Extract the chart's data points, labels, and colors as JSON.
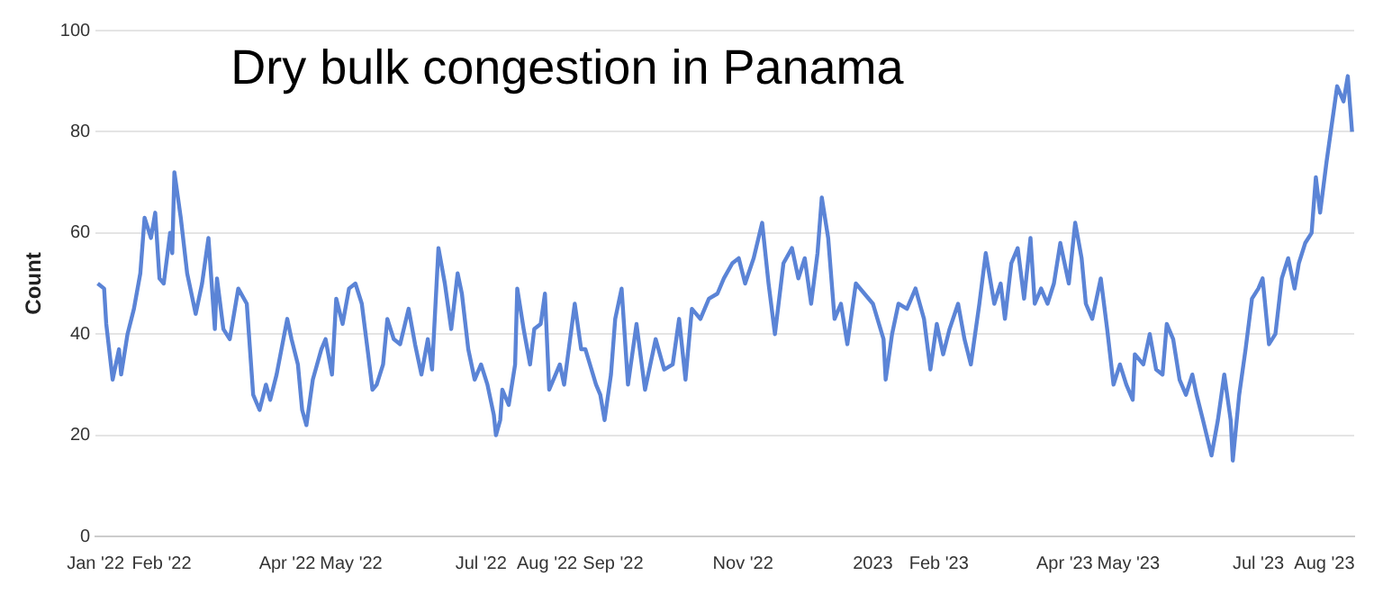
{
  "chart_data": {
    "type": "line",
    "title": "Dry bulk congestion in Panama",
    "ylabel": "Count",
    "x": [
      "2022-01-02",
      "2022-01-05",
      "2022-01-06",
      "2022-01-09",
      "2022-01-12",
      "2022-01-13",
      "2022-01-16",
      "2022-01-19",
      "2022-01-22",
      "2022-01-24",
      "2022-01-27",
      "2022-01-29",
      "2022-01-31",
      "2022-02-02",
      "2022-02-05",
      "2022-02-06",
      "2022-02-07",
      "2022-02-10",
      "2022-02-13",
      "2022-02-17",
      "2022-02-20",
      "2022-02-23",
      "2022-02-26",
      "2022-02-27",
      "2022-03-02",
      "2022-03-05",
      "2022-03-09",
      "2022-03-13",
      "2022-03-16",
      "2022-03-19",
      "2022-03-22",
      "2022-03-24",
      "2022-03-27",
      "2022-04-01",
      "2022-04-03",
      "2022-04-06",
      "2022-04-08",
      "2022-04-10",
      "2022-04-13",
      "2022-04-17",
      "2022-04-19",
      "2022-04-22",
      "2022-04-24",
      "2022-04-27",
      "2022-04-30",
      "2022-05-03",
      "2022-05-06",
      "2022-05-09",
      "2022-05-11",
      "2022-05-13",
      "2022-05-16",
      "2022-05-18",
      "2022-05-21",
      "2022-05-24",
      "2022-05-28",
      "2022-05-31",
      "2022-06-03",
      "2022-06-06",
      "2022-06-08",
      "2022-06-11",
      "2022-06-14",
      "2022-06-17",
      "2022-06-20",
      "2022-06-22",
      "2022-06-25",
      "2022-06-28",
      "2022-07-01",
      "2022-07-04",
      "2022-07-07",
      "2022-07-08",
      "2022-07-10",
      "2022-07-11",
      "2022-07-14",
      "2022-07-17",
      "2022-07-18",
      "2022-07-21",
      "2022-07-24",
      "2022-07-26",
      "2022-07-29",
      "2022-07-31",
      "2022-08-02",
      "2022-08-07",
      "2022-08-09",
      "2022-08-14",
      "2022-08-17",
      "2022-08-19",
      "2022-08-24",
      "2022-08-26",
      "2022-08-28",
      "2022-08-31",
      "2022-09-02",
      "2022-09-05",
      "2022-09-08",
      "2022-09-12",
      "2022-09-16",
      "2022-09-21",
      "2022-09-25",
      "2022-09-29",
      "2022-10-02",
      "2022-10-05",
      "2022-10-08",
      "2022-10-12",
      "2022-10-16",
      "2022-10-20",
      "2022-10-23",
      "2022-10-27",
      "2022-10-30",
      "2022-11-02",
      "2022-11-06",
      "2022-11-10",
      "2022-11-13",
      "2022-11-16",
      "2022-11-20",
      "2022-11-24",
      "2022-11-27",
      "2022-11-30",
      "2022-12-03",
      "2022-12-06",
      "2022-12-08",
      "2022-12-11",
      "2022-12-14",
      "2022-12-17",
      "2022-12-20",
      "2022-12-24",
      "2022-12-28",
      "2023-01-01",
      "2023-01-06",
      "2023-01-07",
      "2023-01-10",
      "2023-01-13",
      "2023-01-17",
      "2023-01-21",
      "2023-01-25",
      "2023-01-28",
      "2023-01-31",
      "2023-02-03",
      "2023-02-06",
      "2023-02-10",
      "2023-02-13",
      "2023-02-16",
      "2023-02-20",
      "2023-02-23",
      "2023-02-27",
      "2023-03-02",
      "2023-03-04",
      "2023-03-07",
      "2023-03-10",
      "2023-03-13",
      "2023-03-16",
      "2023-03-18",
      "2023-03-21",
      "2023-03-24",
      "2023-03-27",
      "2023-03-30",
      "2023-04-03",
      "2023-04-06",
      "2023-04-09",
      "2023-04-11",
      "2023-04-14",
      "2023-04-18",
      "2023-04-21",
      "2023-04-24",
      "2023-04-27",
      "2023-04-30",
      "2023-05-03",
      "2023-05-04",
      "2023-05-08",
      "2023-05-11",
      "2023-05-14",
      "2023-05-17",
      "2023-05-19",
      "2023-05-22",
      "2023-05-25",
      "2023-05-28",
      "2023-05-31",
      "2023-06-02",
      "2023-06-05",
      "2023-06-09",
      "2023-06-12",
      "2023-06-15",
      "2023-06-18",
      "2023-06-19",
      "2023-06-22",
      "2023-06-25",
      "2023-06-28",
      "2023-07-01",
      "2023-07-03",
      "2023-07-06",
      "2023-07-09",
      "2023-07-12",
      "2023-07-15",
      "2023-07-18",
      "2023-07-20",
      "2023-07-23",
      "2023-07-26",
      "2023-07-28",
      "2023-07-30",
      "2023-08-02",
      "2023-08-04",
      "2023-08-07",
      "2023-08-10",
      "2023-08-12",
      "2023-08-14"
    ],
    "series": [
      {
        "color": "#5b84d6",
        "values": [
          50,
          49,
          42,
          31,
          37,
          32,
          40,
          45,
          52,
          63,
          59,
          64,
          51,
          50,
          60,
          56,
          72,
          63,
          52,
          44,
          50,
          59,
          41,
          51,
          41,
          39,
          49,
          46,
          28,
          25,
          30,
          27,
          32,
          43,
          39,
          34,
          25,
          22,
          31,
          37,
          39,
          32,
          47,
          42,
          49,
          50,
          46,
          36,
          29,
          30,
          34,
          43,
          39,
          38,
          45,
          38,
          32,
          39,
          33,
          57,
          50,
          41,
          52,
          48,
          37,
          31,
          34,
          30,
          24,
          20,
          23,
          29,
          26,
          34,
          49,
          41,
          34,
          41,
          42,
          48,
          29,
          34,
          30,
          46,
          37,
          37,
          30,
          28,
          23,
          32,
          43,
          49,
          30,
          42,
          29,
          39,
          33,
          34,
          43,
          31,
          45,
          43,
          47,
          48,
          51,
          54,
          55,
          50,
          55,
          62,
          50,
          40,
          54,
          57,
          51,
          55,
          46,
          56,
          67,
          59,
          43,
          46,
          38,
          50,
          48,
          46,
          39,
          31,
          40,
          46,
          45,
          49,
          43,
          33,
          42,
          36,
          41,
          46,
          39,
          34,
          46,
          56,
          46,
          50,
          43,
          54,
          57,
          47,
          59,
          46,
          49,
          46,
          50,
          58,
          50,
          62,
          55,
          46,
          43,
          51,
          41,
          30,
          34,
          30,
          27,
          36,
          34,
          40,
          33,
          32,
          42,
          39,
          31,
          28,
          32,
          28,
          23,
          16,
          23,
          32,
          23,
          15,
          28,
          37,
          47,
          49,
          51,
          38,
          40,
          51,
          55,
          49,
          54,
          58,
          60,
          71,
          64,
          74,
          80,
          89,
          86,
          91,
          80
        ]
      }
    ],
    "xlim": [
      "2022-01-01",
      "2023-08-15"
    ],
    "xticks": [
      {
        "value": "2022-01-01",
        "label": "Jan '22"
      },
      {
        "value": "2022-02-01",
        "label": "Feb '22"
      },
      {
        "value": "2022-04-01",
        "label": "Apr '22"
      },
      {
        "value": "2022-05-01",
        "label": "May '22"
      },
      {
        "value": "2022-07-01",
        "label": "Jul '22"
      },
      {
        "value": "2022-08-01",
        "label": "Aug '22"
      },
      {
        "value": "2022-09-01",
        "label": "Sep '22"
      },
      {
        "value": "2022-11-01",
        "label": "Nov '22"
      },
      {
        "value": "2023-01-01",
        "label": "2023"
      },
      {
        "value": "2023-02-01",
        "label": "Feb '23"
      },
      {
        "value": "2023-04-01",
        "label": "Apr '23"
      },
      {
        "value": "2023-05-01",
        "label": "May '23"
      },
      {
        "value": "2023-07-01",
        "label": "Jul '23"
      },
      {
        "value": "2023-08-01",
        "label": "Aug '23"
      }
    ],
    "ylim": [
      0,
      100
    ],
    "yticks": [
      0,
      20,
      40,
      60,
      80,
      100
    ],
    "grid": "y",
    "legend": false,
    "marker": "none",
    "line_style": "solid"
  }
}
